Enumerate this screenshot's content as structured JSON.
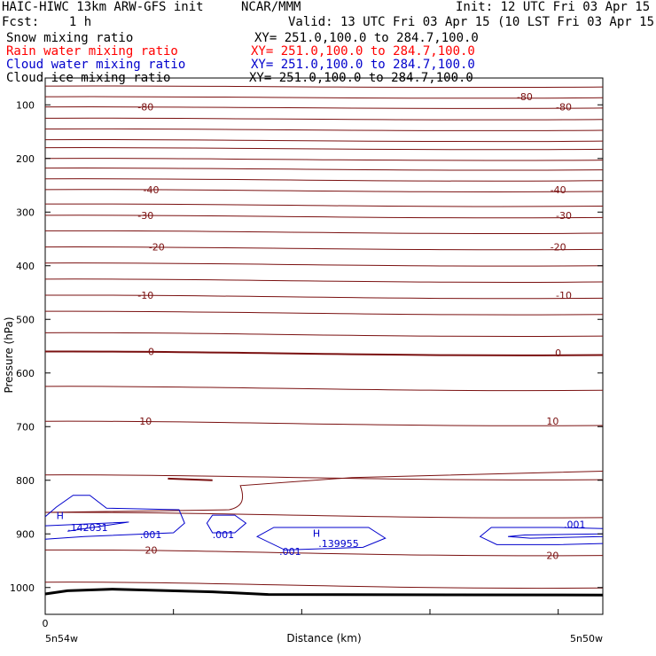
{
  "header": {
    "title_left": "HAIC-HIWC 13km ARW-GFS init",
    "org": "NCAR/MMM",
    "init": "Init: 12 UTC Fri 03 Apr 15",
    "fcst": "Fcst:    1 h",
    "valid": "Valid: 13 UTC Fri 03 Apr 15 (10 LST Fri 03 Apr 15)"
  },
  "fields": [
    {
      "label": "Snow mixing ratio",
      "xy": "XY= 251.0,100.0 to 284.7,100.0",
      "color": "#000000"
    },
    {
      "label": "Rain water mixing ratio",
      "xy": "XY= 251.0,100.0 to 284.7,100.0",
      "color": "#ff0000"
    },
    {
      "label": "Cloud water mixing ratio",
      "xy": "XY= 251.0,100.0 to 284.7,100.0",
      "color": "#0000cc"
    },
    {
      "label": "Cloud ice mixing ratio",
      "xy": "XY= 251.0,100.0 to 284.7,100.0",
      "color": "#000000"
    }
  ],
  "chart_data": {
    "type": "line",
    "xlabel": "Distance (km)",
    "ylabel": "Pressure (hPa)",
    "x_tick_labels": {
      "start": "0",
      "left": "5n54w",
      "right": "5n50w"
    },
    "y_tick_labels": [
      "100",
      "200",
      "300",
      "400",
      "500",
      "600",
      "700",
      "800",
      "900",
      "1000"
    ],
    "ylim": [
      1050,
      50
    ],
    "colors": {
      "temperature": "#7a1010",
      "cloud_water": "#0000cc",
      "ground": "#000000"
    },
    "temperature_contour_labels": [
      {
        "value": "-80",
        "p": 104,
        "x": 0.18
      },
      {
        "value": "-80",
        "p": 85,
        "x": 0.86
      },
      {
        "value": "-80",
        "p": 104,
        "x": 0.93
      },
      {
        "value": "-40",
        "p": 258,
        "x": 0.19
      },
      {
        "value": "-40",
        "p": 258,
        "x": 0.92
      },
      {
        "value": "-30",
        "p": 306,
        "x": 0.18
      },
      {
        "value": "-30",
        "p": 306,
        "x": 0.93
      },
      {
        "value": "-20",
        "p": 365,
        "x": 0.2
      },
      {
        "value": "-20",
        "p": 365,
        "x": 0.92
      },
      {
        "value": "-10",
        "p": 455,
        "x": 0.18
      },
      {
        "value": "-10",
        "p": 455,
        "x": 0.93
      },
      {
        "value": "0",
        "p": 560,
        "x": 0.19
      },
      {
        "value": "0",
        "p": 562,
        "x": 0.92
      },
      {
        "value": "10",
        "p": 690,
        "x": 0.18
      },
      {
        "value": "10",
        "p": 690,
        "x": 0.91
      },
      {
        "value": "20",
        "p": 930,
        "x": 0.19
      },
      {
        "value": "20",
        "p": 940,
        "x": 0.91
      }
    ],
    "temperature_isotherms_p": [
      65,
      85,
      104,
      125,
      145,
      165,
      180,
      200,
      218,
      238,
      258,
      285,
      306,
      335,
      365,
      395,
      425,
      455,
      485,
      525,
      560,
      625,
      690,
      790,
      860,
      930,
      990
    ],
    "cloud_water_labels": [
      {
        "text": ".001",
        "p": 901,
        "x": 0.17
      },
      {
        "text": ".001",
        "p": 901,
        "x": 0.3
      },
      {
        "text": ".001",
        "p": 933,
        "x": 0.42
      },
      {
        "text": ".001",
        "p": 882,
        "x": 0.93
      },
      {
        "text": "H",
        "p": 866,
        "x": 0.02
      },
      {
        "text": ".142031",
        "p": 888,
        "x": 0.04
      },
      {
        "text": "H",
        "p": 899,
        "x": 0.48
      },
      {
        "text": ".139955",
        "p": 918,
        "x": 0.49
      }
    ]
  }
}
